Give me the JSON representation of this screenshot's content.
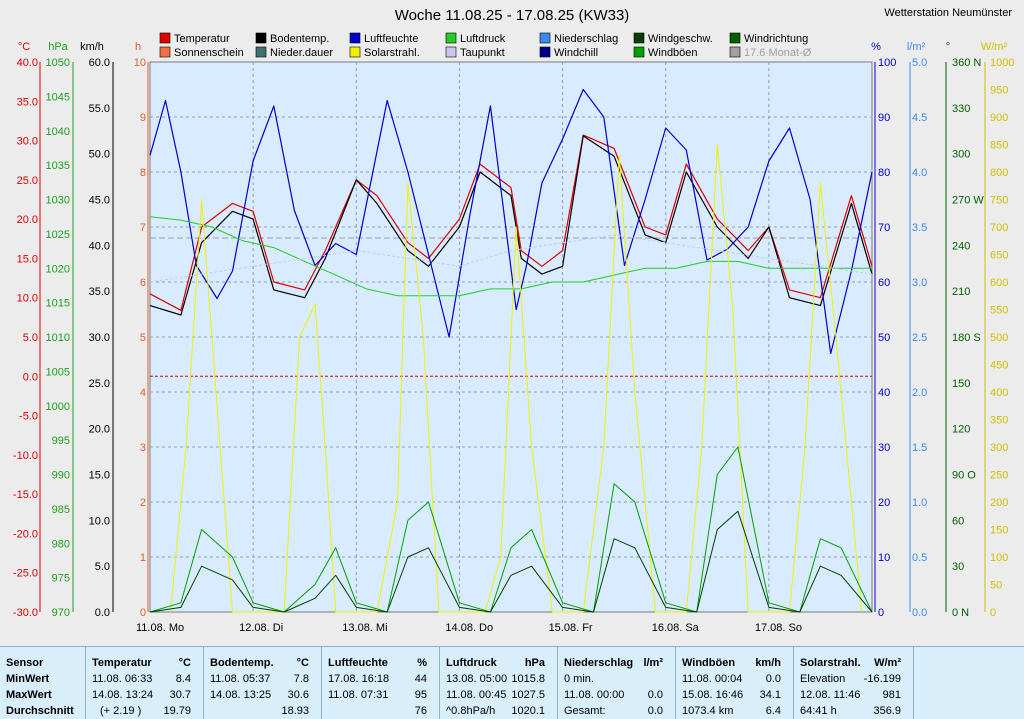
{
  "station": "Wetterstation Neumünster",
  "chart_data": {
    "type": "line",
    "title": "Woche 11.08.25 - 17.08.25 (KW33)",
    "legend": [
      {
        "name": "Temperatur",
        "color": "#e00000"
      },
      {
        "name": "Bodentemp.",
        "color": "#000000"
      },
      {
        "name": "Luftfeuchte",
        "color": "#0000d0"
      },
      {
        "name": "Luftdruck",
        "color": "#22cc22"
      },
      {
        "name": "Niederschlag",
        "color": "#3a8cf0"
      },
      {
        "name": "Windgeschw.",
        "color": "#004000"
      },
      {
        "name": "Windrichtung",
        "color": "#006000"
      },
      {
        "name": "Sonnenschein",
        "color": "#f07040"
      },
      {
        "name": "Nieder.dauer",
        "color": "#407070"
      },
      {
        "name": "Solarstrahl.",
        "color": "#f0f000"
      },
      {
        "name": "Taupunkt",
        "color": "#c8c8f0"
      },
      {
        "name": "Windchill",
        "color": "#000090"
      },
      {
        "name": "Windböen",
        "color": "#00a000"
      },
      {
        "name": "17.6 Monat-Ø",
        "color": "#a0a0a0"
      }
    ],
    "axes": {
      "temp": {
        "unit": "°C",
        "color": "#e00000",
        "ticks": [
          "40.0",
          "35.0",
          "30.0",
          "25.0",
          "20.0",
          "15.0",
          "10.0",
          "5.0",
          "0.0",
          "-5.0",
          "-10.0",
          "-15.0",
          "-20.0",
          "-25.0",
          "-30.0"
        ],
        "range": [
          -30,
          40
        ]
      },
      "pressure": {
        "unit": "hPa",
        "color": "#20a020",
        "ticks": [
          "1050",
          "1045",
          "1040",
          "1035",
          "1030",
          "1025",
          "1020",
          "1015",
          "1010",
          "1005",
          "1000",
          "995",
          "990",
          "985",
          "980",
          "975",
          "970"
        ],
        "range": [
          970,
          1050
        ]
      },
      "wind": {
        "unit": "km/h",
        "color": "#000000",
        "ticks": [
          "60.0",
          "55.0",
          "50.0",
          "45.0",
          "40.0",
          "35.0",
          "30.0",
          "25.0",
          "20.0",
          "15.0",
          "10.0",
          "5.0",
          "0.0"
        ],
        "range": [
          0,
          60
        ]
      },
      "sun_hours": {
        "unit": "h",
        "color": "#e06030",
        "ticks": [
          "10",
          "9",
          "8",
          "7",
          "6",
          "5",
          "4",
          "3",
          "2",
          "1",
          "0"
        ],
        "range": [
          0,
          10
        ]
      },
      "humidity": {
        "unit": "%",
        "color": "#0000d0",
        "ticks": [
          "100",
          "90",
          "80",
          "70",
          "60",
          "50",
          "40",
          "30",
          "20",
          "10",
          "0"
        ],
        "range": [
          0,
          100
        ]
      },
      "rain": {
        "unit": "l/m²",
        "color": "#3a8cf0",
        "ticks": [
          "5.0",
          "4.5",
          "4.0",
          "3.5",
          "3.0",
          "2.5",
          "2.0",
          "1.5",
          "1.0",
          "0.5",
          "0.0"
        ],
        "range": [
          0,
          5
        ]
      },
      "direction": {
        "unit": "°",
        "color": "#006000",
        "ticks": [
          "360 N",
          "330",
          "300",
          "270 W",
          "240",
          "210",
          "180 S",
          "150",
          "120",
          "90 O",
          "60",
          "30",
          "0 N"
        ],
        "range": [
          0,
          360
        ]
      },
      "solar": {
        "unit": "W/m²",
        "color": "#d0c000",
        "ticks": [
          "1000",
          "950",
          "900",
          "850",
          "800",
          "750",
          "700",
          "650",
          "600",
          "550",
          "500",
          "450",
          "400",
          "350",
          "300",
          "250",
          "200",
          "150",
          "100",
          "50",
          "0"
        ],
        "range": [
          0,
          1000
        ]
      }
    },
    "x_ticks": [
      "11.08.  Mo",
      "12.08.  Di",
      "13.08.  Mi",
      "14.08.  Do",
      "15.08.  Fr",
      "16.08.  Sa",
      "17.08.  So"
    ],
    "month_avg_temp": 17.6,
    "series": [
      {
        "name": "Temperatur",
        "axis": "temp",
        "x": [
          0,
          0.3,
          0.5,
          0.8,
          1.0,
          1.2,
          1.5,
          1.7,
          2.0,
          2.2,
          2.5,
          2.7,
          3.0,
          3.2,
          3.5,
          3.6,
          3.8,
          4.0,
          4.2,
          4.5,
          4.8,
          5.0,
          5.2,
          5.5,
          5.8,
          6.0,
          6.2,
          6.5,
          6.8,
          7.0
        ],
        "y": [
          10.5,
          8.4,
          19,
          22,
          21,
          12,
          11,
          16,
          25,
          23,
          17,
          15,
          20,
          27,
          24,
          16,
          14,
          16,
          30.7,
          29,
          19,
          18,
          27,
          20,
          16,
          19,
          11,
          10,
          23,
          14
        ]
      },
      {
        "name": "Bodentemp.",
        "axis": "temp",
        "x": [
          0,
          0.3,
          0.5,
          0.8,
          1.0,
          1.2,
          1.5,
          1.7,
          2.0,
          2.2,
          2.5,
          2.7,
          3.0,
          3.2,
          3.5,
          3.6,
          3.8,
          4.0,
          4.2,
          4.5,
          4.8,
          5.0,
          5.2,
          5.5,
          5.8,
          6.0,
          6.2,
          6.5,
          6.8,
          7.0
        ],
        "y": [
          9,
          7.8,
          17,
          21,
          20,
          11,
          10,
          15,
          25,
          22,
          16,
          14,
          19,
          26,
          23,
          15,
          13,
          14,
          30.6,
          28,
          18,
          17,
          26,
          19,
          15,
          19,
          10,
          9,
          22,
          13
        ]
      },
      {
        "name": "Luftfeuchte",
        "axis": "humidity",
        "x": [
          0,
          0.15,
          0.3,
          0.45,
          0.65,
          0.8,
          1.0,
          1.2,
          1.4,
          1.6,
          1.8,
          2.0,
          2.3,
          2.5,
          2.7,
          2.9,
          3.1,
          3.3,
          3.55,
          3.65,
          3.8,
          4.0,
          4.2,
          4.4,
          4.6,
          4.8,
          5.0,
          5.2,
          5.4,
          5.6,
          5.8,
          6.0,
          6.2,
          6.4,
          6.6,
          6.8,
          7.0
        ],
        "y": [
          83,
          93,
          80,
          63,
          57,
          62,
          82,
          92,
          73,
          63,
          67,
          65,
          93,
          80,
          65,
          50,
          72,
          92,
          55,
          63,
          78,
          86,
          95,
          90,
          63,
          75,
          88,
          84,
          64,
          66,
          70,
          82,
          88,
          75,
          47,
          62,
          80
        ]
      },
      {
        "name": "Luftdruck",
        "axis": "pressure",
        "x": [
          0,
          0.3,
          0.6,
          0.9,
          1.2,
          1.5,
          1.8,
          2.1,
          2.4,
          2.7,
          3.0,
          3.3,
          3.6,
          3.9,
          4.2,
          4.5,
          4.8,
          5.1,
          5.4,
          5.7,
          6.0,
          6.3,
          6.6,
          7.0
        ],
        "y": [
          1027.5,
          1027,
          1026,
          1024,
          1023,
          1021,
          1019,
          1017,
          1016,
          1016,
          1016,
          1017,
          1017,
          1018,
          1018,
          1019,
          1020,
          1020,
          1021,
          1021,
          1020,
          1020,
          1020,
          1020
        ]
      },
      {
        "name": "Taupunkt",
        "axis": "temp",
        "x": [
          0,
          0.5,
          1.0,
          1.5,
          2.0,
          2.5,
          3.0,
          3.5,
          4.0,
          4.5,
          5.0,
          5.5,
          6.0,
          6.5,
          7.0
        ],
        "y": [
          12,
          13,
          14,
          15,
          16,
          15,
          14,
          16,
          17,
          18,
          17,
          16,
          15,
          14,
          13
        ]
      },
      {
        "name": "Solarstrahl.",
        "axis": "solar",
        "x": [
          0.2,
          0.35,
          0.5,
          0.6,
          0.8,
          1.3,
          1.45,
          1.6,
          1.7,
          1.8,
          2.2,
          2.4,
          2.5,
          2.65,
          2.8,
          3.25,
          3.4,
          3.55,
          3.7,
          3.9,
          4.2,
          4.4,
          4.55,
          4.7,
          4.9,
          5.2,
          5.35,
          5.5,
          5.65,
          5.8,
          6.2,
          6.35,
          6.5,
          6.65,
          6.9
        ],
        "y": [
          0,
          300,
          750,
          500,
          0,
          0,
          500,
          560,
          300,
          0,
          0,
          200,
          780,
          500,
          0,
          0,
          100,
          700,
          300,
          0,
          0,
          300,
          830,
          400,
          0,
          0,
          300,
          850,
          550,
          0,
          0,
          300,
          780,
          500,
          0
        ]
      },
      {
        "name": "Windböen",
        "axis": "wind",
        "x": [
          0,
          0.3,
          0.5,
          0.8,
          1.0,
          1.3,
          1.6,
          1.8,
          2.0,
          2.3,
          2.5,
          2.7,
          3.0,
          3.3,
          3.5,
          3.7,
          4.0,
          4.3,
          4.5,
          4.7,
          5.0,
          5.3,
          5.5,
          5.7,
          6.0,
          6.3,
          6.5,
          6.7,
          7.0
        ],
        "y": [
          0,
          1,
          9,
          6,
          1,
          0,
          3,
          7,
          1,
          0,
          10,
          12,
          1,
          0,
          7,
          9,
          1,
          0,
          14,
          12,
          1,
          0,
          15,
          18,
          1,
          0,
          8,
          7,
          0
        ]
      },
      {
        "name": "Windgeschw.",
        "axis": "wind",
        "x": [
          0,
          0.3,
          0.5,
          0.8,
          1.0,
          1.3,
          1.6,
          1.8,
          2.0,
          2.3,
          2.5,
          2.7,
          3.0,
          3.3,
          3.5,
          3.7,
          4.0,
          4.3,
          4.5,
          4.7,
          5.0,
          5.3,
          5.5,
          5.7,
          6.0,
          6.3,
          6.5,
          6.7,
          7.0
        ],
        "y": [
          0,
          0.5,
          5,
          3.5,
          0.5,
          0,
          1.5,
          4,
          0.5,
          0,
          6,
          7,
          0.5,
          0,
          4,
          5,
          0.5,
          0,
          8,
          7,
          0.5,
          0,
          9,
          11,
          0.5,
          0,
          5,
          4,
          0
        ]
      }
    ]
  },
  "stats": {
    "sensor": {
      "h": "Sensor",
      "min": "MinWert",
      "max": "MaxWert",
      "avg": "Durchschnitt"
    },
    "temperatur": {
      "h": "Temperatur",
      "u": "°C",
      "min_t": "11.08.  06:33",
      "min_v": "8.4",
      "max_t": "14.08.  13:24",
      "max_v": "30.7",
      "avg_t": "(+ 2.19 )",
      "avg_v": "19.79"
    },
    "bodentemp": {
      "h": "Bodentemp.",
      "u": "°C",
      "min_t": "11.08.  05:37",
      "min_v": "7.8",
      "max_t": "14.08.  13:25",
      "max_v": "30.6",
      "avg_t": "",
      "avg_v": "18.93"
    },
    "luftfeuchte": {
      "h": "Luftfeuchte",
      "u": "%",
      "min_t": "17.08.  16:18",
      "min_v": "44",
      "max_t": "11.08.  07:31",
      "max_v": "95",
      "avg_t": "",
      "avg_v": "76"
    },
    "luftdruck": {
      "h": "Luftdruck",
      "u": "hPa",
      "min_t": "13.08.  05:00",
      "min_v": "1015.8",
      "max_t": "11.08.  00:45",
      "max_v": "1027.5",
      "avg_t": "^0.8hPa/h",
      "avg_v": "1020.1"
    },
    "niederschlag": {
      "h": "Niederschlag",
      "u": "l/m²",
      "min_t": "0 min.",
      "min_v": "",
      "max_t": "11.08.  00:00",
      "max_v": "0.0",
      "avg_t": "Gesamt:",
      "avg_v": "0.0"
    },
    "windboeen": {
      "h": "Windböen",
      "u": "km/h",
      "min_t": "11.08.  00:04",
      "min_v": "0.0",
      "max_t": "15.08.  16:46",
      "max_v": "34.1",
      "avg_t": "1073.4 km",
      "avg_v": "6.4"
    },
    "solar": {
      "h": "Solarstrahl.",
      "u": "W/m²",
      "min_t": "Elevation",
      "min_v": "-16.199",
      "max_t": "12.08.  11:46",
      "max_v": "981",
      "avg_t": "64:41 h",
      "avg_v": "356.9"
    }
  }
}
